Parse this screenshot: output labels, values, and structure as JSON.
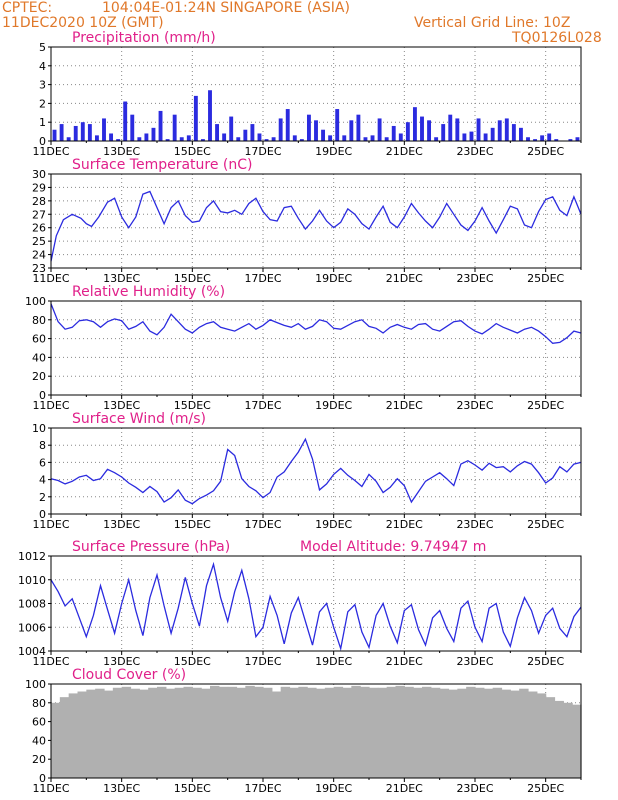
{
  "header": {
    "source": "CPTEC:",
    "location": "104:04E-01:24N   SINGAPORE (ASIA)",
    "datetime": "11DEC2020 10Z (GMT)",
    "grid_note": "Vertical Grid Line: 10Z",
    "code": "TQ0126L028"
  },
  "colors": {
    "header": "#e0782a",
    "title": "#e0208a",
    "line": "#2b2bdf",
    "bars": "#2b2bdf",
    "cloud": "#b0b0b0"
  },
  "x_days": [
    "11DEC",
    "13DEC",
    "15DEC",
    "17DEC",
    "19DEC",
    "21DEC",
    "23DEC",
    "25DEC"
  ],
  "chart_data": [
    {
      "type": "bar",
      "title": "Precipitation (mm/h)",
      "ylim": [
        0,
        5
      ],
      "yticks": [
        0,
        1,
        2,
        3,
        4,
        5
      ],
      "x_range_days": [
        0,
        15
      ],
      "grid": true,
      "x": [
        0.1,
        0.3,
        0.5,
        0.7,
        0.9,
        1.1,
        1.3,
        1.5,
        1.7,
        1.9,
        2.1,
        2.3,
        2.5,
        2.7,
        2.9,
        3.1,
        3.3,
        3.5,
        3.7,
        3.9,
        4.1,
        4.3,
        4.5,
        4.7,
        4.9,
        5.1,
        5.3,
        5.5,
        5.7,
        5.9,
        6.1,
        6.3,
        6.5,
        6.7,
        6.9,
        7.1,
        7.3,
        7.5,
        7.7,
        7.9,
        8.1,
        8.3,
        8.5,
        8.7,
        8.9,
        9.1,
        9.3,
        9.5,
        9.7,
        9.9,
        10.1,
        10.3,
        10.5,
        10.7,
        10.9,
        11.1,
        11.3,
        11.5,
        11.7,
        11.9,
        12.1,
        12.3,
        12.5,
        12.7,
        12.9,
        13.1,
        13.3,
        13.5,
        13.7,
        13.9,
        14.1,
        14.3,
        14.5,
        14.7,
        14.9
      ],
      "values": [
        0.6,
        0.9,
        0.2,
        0.8,
        1.0,
        0.9,
        0.3,
        1.2,
        0.4,
        0.1,
        2.1,
        1.4,
        0.2,
        0.4,
        0.7,
        1.6,
        0.1,
        1.4,
        0.2,
        0.3,
        2.4,
        0.1,
        2.7,
        0.9,
        0.4,
        1.3,
        0.2,
        0.6,
        0.9,
        0.4,
        0.1,
        0.2,
        1.2,
        1.7,
        0.3,
        0.1,
        1.4,
        1.1,
        0.6,
        0.3,
        1.7,
        0.3,
        1.1,
        1.4,
        0.2,
        0.3,
        1.2,
        0.2,
        0.8,
        0.4,
        1.0,
        1.8,
        1.3,
        1.1,
        0.2,
        0.9,
        1.4,
        1.2,
        0.4,
        0.5,
        1.2,
        0.4,
        0.7,
        1.1,
        1.2,
        0.9,
        0.7,
        0.2,
        0.1,
        0.3,
        0.4,
        0.1,
        0.0,
        0.1,
        0.2
      ]
    },
    {
      "type": "line",
      "title": "Surface Temperature (nC)",
      "ylim": [
        23,
        30
      ],
      "yticks": [
        23,
        24,
        25,
        26,
        27,
        28,
        29,
        30
      ],
      "x_range_days": [
        0,
        15
      ],
      "grid": true,
      "x": [
        0,
        0.15,
        0.35,
        0.6,
        0.85,
        1.0,
        1.15,
        1.35,
        1.6,
        1.8,
        2.0,
        2.2,
        2.4,
        2.6,
        2.8,
        3.0,
        3.2,
        3.4,
        3.6,
        3.8,
        4.0,
        4.2,
        4.4,
        4.6,
        4.8,
        5.0,
        5.2,
        5.4,
        5.6,
        5.8,
        6.0,
        6.2,
        6.4,
        6.6,
        6.8,
        7.0,
        7.2,
        7.4,
        7.6,
        7.8,
        8.0,
        8.2,
        8.4,
        8.6,
        8.8,
        9.0,
        9.2,
        9.4,
        9.6,
        9.8,
        10.0,
        10.2,
        10.4,
        10.6,
        10.8,
        11.0,
        11.2,
        11.4,
        11.6,
        11.8,
        12.0,
        12.2,
        12.4,
        12.6,
        12.8,
        13.0,
        13.2,
        13.4,
        13.6,
        13.8,
        14.0,
        14.2,
        14.4,
        14.6,
        14.8,
        15.0
      ],
      "values": [
        23.5,
        25.4,
        26.6,
        27.0,
        26.7,
        26.3,
        26.1,
        26.8,
        27.9,
        28.2,
        26.8,
        26.0,
        26.8,
        28.5,
        28.7,
        27.5,
        26.3,
        27.5,
        28.0,
        26.9,
        26.4,
        26.5,
        27.5,
        28.0,
        27.2,
        27.1,
        27.3,
        27.0,
        27.8,
        28.2,
        27.2,
        26.6,
        26.5,
        27.5,
        27.6,
        26.7,
        25.9,
        26.5,
        27.3,
        26.5,
        26.0,
        26.4,
        27.4,
        27.0,
        26.3,
        25.9,
        26.8,
        27.6,
        26.4,
        26.0,
        26.8,
        27.8,
        27.1,
        26.5,
        26.0,
        26.8,
        27.8,
        27.0,
        26.2,
        25.8,
        26.5,
        27.5,
        26.5,
        25.6,
        26.6,
        27.6,
        27.4,
        26.2,
        26.0,
        27.2,
        28.1,
        28.3,
        27.3,
        26.9,
        28.3,
        27.0
      ]
    },
    {
      "type": "line",
      "title": "Relative Humidity (%)",
      "ylim": [
        0,
        100
      ],
      "yticks": [
        0,
        20,
        40,
        60,
        80,
        100
      ],
      "x_range_days": [
        0,
        15
      ],
      "grid": true,
      "x": [
        0,
        0.2,
        0.4,
        0.6,
        0.8,
        1.0,
        1.2,
        1.4,
        1.6,
        1.8,
        2.0,
        2.2,
        2.4,
        2.6,
        2.8,
        3.0,
        3.2,
        3.4,
        3.6,
        3.8,
        4.0,
        4.2,
        4.4,
        4.6,
        4.8,
        5.0,
        5.2,
        5.4,
        5.6,
        5.8,
        6.0,
        6.2,
        6.4,
        6.6,
        6.8,
        7.0,
        7.2,
        7.4,
        7.6,
        7.8,
        8.0,
        8.2,
        8.4,
        8.6,
        8.8,
        9.0,
        9.2,
        9.4,
        9.6,
        9.8,
        10.0,
        10.2,
        10.4,
        10.6,
        10.8,
        11.0,
        11.2,
        11.4,
        11.6,
        11.8,
        12.0,
        12.2,
        12.4,
        12.6,
        12.8,
        13.0,
        13.2,
        13.4,
        13.6,
        13.8,
        14.0,
        14.2,
        14.4,
        14.6,
        14.8,
        15.0
      ],
      "values": [
        97,
        78,
        70,
        72,
        79,
        80,
        78,
        72,
        78,
        81,
        79,
        70,
        73,
        78,
        68,
        64,
        72,
        86,
        78,
        70,
        66,
        72,
        76,
        78,
        72,
        70,
        68,
        72,
        76,
        70,
        74,
        80,
        77,
        74,
        72,
        76,
        70,
        73,
        80,
        78,
        71,
        70,
        74,
        78,
        80,
        73,
        71,
        66,
        72,
        75,
        72,
        70,
        75,
        76,
        70,
        68,
        73,
        78,
        79,
        73,
        68,
        65,
        70,
        76,
        72,
        69,
        66,
        70,
        72,
        68,
        62,
        55,
        56,
        61,
        68,
        66
      ]
    },
    {
      "type": "line",
      "title": "Surface Wind (m/s)",
      "ylim": [
        0,
        10
      ],
      "yticks": [
        0,
        2,
        4,
        6,
        8,
        10
      ],
      "x_range_days": [
        0,
        15
      ],
      "grid": true,
      "x": [
        0,
        0.2,
        0.4,
        0.6,
        0.8,
        1.0,
        1.2,
        1.4,
        1.6,
        1.8,
        2.0,
        2.2,
        2.4,
        2.6,
        2.8,
        3.0,
        3.2,
        3.4,
        3.6,
        3.8,
        4.0,
        4.2,
        4.4,
        4.6,
        4.8,
        5.0,
        5.2,
        5.4,
        5.6,
        5.8,
        6.0,
        6.2,
        6.4,
        6.6,
        6.8,
        7.0,
        7.2,
        7.4,
        7.6,
        7.8,
        8.0,
        8.2,
        8.4,
        8.6,
        8.8,
        9.0,
        9.2,
        9.4,
        9.6,
        9.8,
        10.0,
        10.2,
        10.4,
        10.6,
        10.8,
        11.0,
        11.2,
        11.4,
        11.6,
        11.8,
        12.0,
        12.2,
        12.4,
        12.6,
        12.8,
        13.0,
        13.2,
        13.4,
        13.6,
        13.8,
        14.0,
        14.2,
        14.4,
        14.6,
        14.8,
        15.0
      ],
      "values": [
        4.1,
        3.9,
        3.5,
        3.8,
        4.3,
        4.5,
        3.9,
        4.1,
        5.2,
        4.8,
        4.3,
        3.6,
        3.1,
        2.5,
        3.2,
        2.6,
        1.4,
        1.9,
        2.8,
        1.6,
        1.2,
        1.8,
        2.2,
        2.7,
        3.8,
        7.5,
        6.8,
        4.1,
        3.2,
        2.7,
        1.9,
        2.5,
        4.3,
        4.9,
        6.1,
        7.2,
        8.7,
        6.4,
        2.8,
        3.5,
        4.6,
        5.3,
        4.5,
        3.9,
        3.2,
        4.6,
        3.8,
        2.5,
        3.1,
        4.1,
        3.3,
        1.4,
        2.6,
        3.8,
        4.3,
        4.8,
        4.1,
        3.3,
        5.8,
        6.2,
        5.7,
        5.1,
        5.9,
        5.4,
        5.5,
        4.9,
        5.6,
        6.1,
        5.8,
        4.8,
        3.6,
        4.2,
        5.5,
        4.9,
        5.8,
        6.0
      ]
    },
    {
      "type": "line",
      "title": "Surface Pressure (hPa)",
      "annotation": "Model Altitude: 9.74947 m",
      "ylim": [
        1004,
        1012
      ],
      "yticks": [
        1004,
        1006,
        1008,
        1010,
        1012
      ],
      "x_range_days": [
        0,
        15
      ],
      "grid": true,
      "x": [
        0,
        0.2,
        0.4,
        0.6,
        0.8,
        1.0,
        1.2,
        1.4,
        1.6,
        1.8,
        2.0,
        2.2,
        2.4,
        2.6,
        2.8,
        3.0,
        3.2,
        3.4,
        3.6,
        3.8,
        4.0,
        4.2,
        4.4,
        4.6,
        4.8,
        5.0,
        5.2,
        5.4,
        5.6,
        5.8,
        6.0,
        6.2,
        6.4,
        6.6,
        6.8,
        7.0,
        7.2,
        7.4,
        7.6,
        7.8,
        8.0,
        8.2,
        8.4,
        8.6,
        8.8,
        9.0,
        9.2,
        9.4,
        9.6,
        9.8,
        10.0,
        10.2,
        10.4,
        10.6,
        10.8,
        11.0,
        11.2,
        11.4,
        11.6,
        11.8,
        12.0,
        12.2,
        12.4,
        12.6,
        12.8,
        13.0,
        13.2,
        13.4,
        13.6,
        13.8,
        14.0,
        14.2,
        14.4,
        14.6,
        14.8,
        15.0
      ],
      "values": [
        1010.0,
        1009.0,
        1007.8,
        1008.4,
        1006.8,
        1005.2,
        1007.0,
        1009.5,
        1007.5,
        1005.5,
        1008.0,
        1010.0,
        1007.4,
        1005.3,
        1008.5,
        1010.4,
        1007.8,
        1005.5,
        1007.6,
        1010.2,
        1008.0,
        1006.1,
        1009.5,
        1011.3,
        1008.5,
        1006.5,
        1009.0,
        1010.8,
        1008.4,
        1005.2,
        1006.0,
        1008.6,
        1007.0,
        1004.6,
        1007.2,
        1008.5,
        1006.5,
        1004.5,
        1007.3,
        1008.0,
        1006.0,
        1004.2,
        1007.3,
        1007.9,
        1005.6,
        1004.3,
        1007.0,
        1008.0,
        1006.1,
        1004.7,
        1007.4,
        1007.9,
        1005.8,
        1004.5,
        1006.8,
        1007.4,
        1005.9,
        1004.8,
        1007.6,
        1008.2,
        1006.0,
        1004.8,
        1007.6,
        1008.0,
        1005.6,
        1004.4,
        1006.8,
        1008.5,
        1007.4,
        1005.5,
        1007.0,
        1007.6,
        1005.9,
        1005.2,
        1006.9,
        1007.7
      ]
    },
    {
      "type": "bar",
      "title": "Cloud Cover (%)",
      "ylim": [
        0,
        100
      ],
      "yticks": [
        0,
        20,
        40,
        60,
        80,
        100
      ],
      "x_range_days": [
        0,
        15
      ],
      "grid": true,
      "x": [
        0,
        0.25,
        0.5,
        0.75,
        1.0,
        1.25,
        1.5,
        1.75,
        2.0,
        2.25,
        2.5,
        2.75,
        3.0,
        3.25,
        3.5,
        3.75,
        4.0,
        4.25,
        4.5,
        4.75,
        5.0,
        5.25,
        5.5,
        5.75,
        6.0,
        6.25,
        6.5,
        6.75,
        7.0,
        7.25,
        7.5,
        7.75,
        8.0,
        8.25,
        8.5,
        8.75,
        9.0,
        9.25,
        9.5,
        9.75,
        10.0,
        10.25,
        10.5,
        10.75,
        11.0,
        11.25,
        11.5,
        11.75,
        12.0,
        12.25,
        12.5,
        12.75,
        13.0,
        13.25,
        13.5,
        13.75,
        14.0,
        14.25,
        14.5,
        14.75
      ],
      "values": [
        80,
        86,
        90,
        92,
        94,
        95,
        93,
        96,
        97,
        95,
        94,
        96,
        97,
        95,
        96,
        97,
        96,
        95,
        98,
        97,
        97,
        96,
        98,
        97,
        96,
        92,
        97,
        96,
        97,
        96,
        95,
        96,
        97,
        96,
        98,
        97,
        96,
        96,
        97,
        98,
        97,
        96,
        97,
        96,
        95,
        94,
        95,
        97,
        96,
        95,
        96,
        94,
        93,
        95,
        92,
        90,
        86,
        82,
        80,
        78
      ]
    }
  ]
}
